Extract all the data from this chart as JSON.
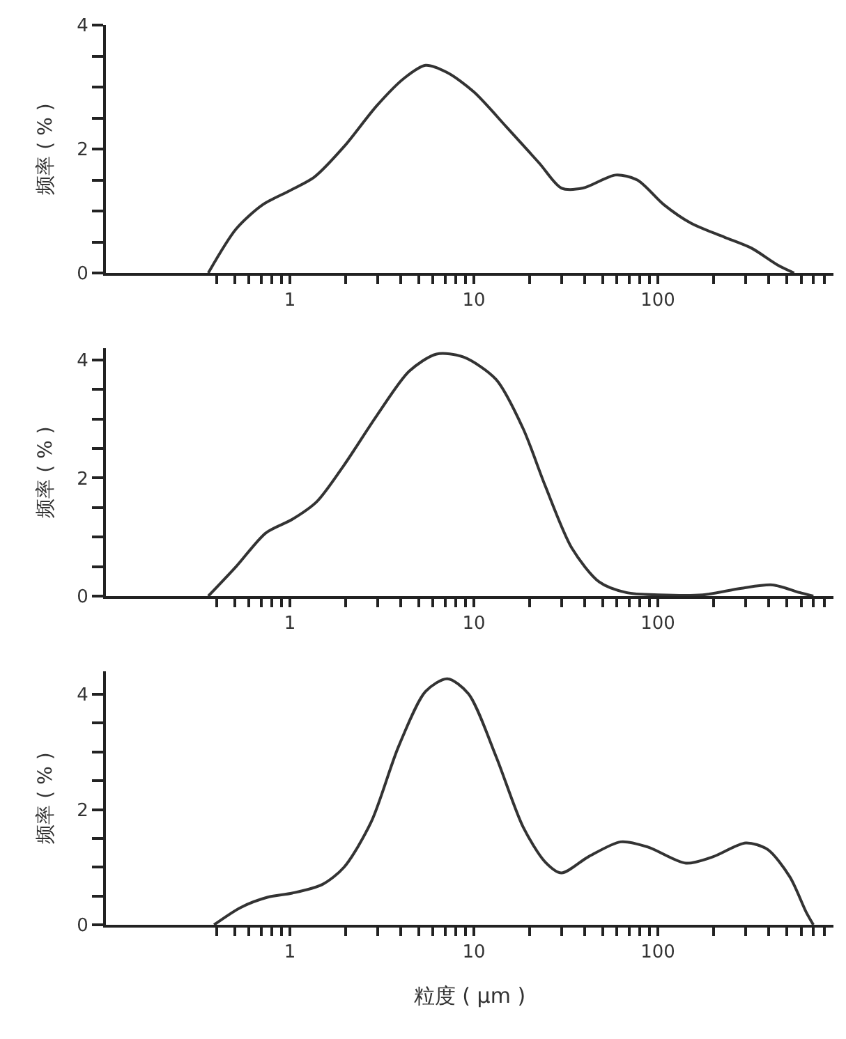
{
  "chart_data": [
    {
      "type": "line",
      "ylabel": "频率 ( % )",
      "log": "x",
      "line_style": "solid",
      "x": [
        0.36,
        0.51,
        0.71,
        1.0,
        1.36,
        1.97,
        2.97,
        4.17,
        5.46,
        7.2,
        10,
        15.1,
        22.7,
        29.9,
        39.2,
        58.9,
        77.3,
        108,
        152,
        229,
        323,
        447,
        550
      ],
      "series": [
        {
          "color": "#333333",
          "values": [
            0,
            0.71,
            1.1,
            1.33,
            1.55,
            2.04,
            2.7,
            3.14,
            3.35,
            3.23,
            2.92,
            2.35,
            1.77,
            1.37,
            1.37,
            1.58,
            1.5,
            1.1,
            0.8,
            0.58,
            0.4,
            0.13,
            0
          ]
        }
      ],
      "xlim": [
        0.1,
        900
      ],
      "xticks": [
        {
          "value": 0.4,
          "label": null
        },
        {
          "value": 0.5,
          "label": null
        },
        {
          "value": 0.6,
          "label": null
        },
        {
          "value": 0.7,
          "label": null
        },
        {
          "value": 0.8,
          "label": null
        },
        {
          "value": 0.9,
          "label": null
        },
        1,
        {
          "value": 2,
          "label": null
        },
        {
          "value": 3,
          "label": null
        },
        {
          "value": 4,
          "label": null
        },
        {
          "value": 5,
          "label": null
        },
        {
          "value": 6,
          "label": null
        },
        {
          "value": 7,
          "label": null
        },
        {
          "value": 8,
          "label": null
        },
        {
          "value": 9,
          "label": null
        },
        10,
        {
          "value": 20,
          "label": null
        },
        {
          "value": 30,
          "label": null
        },
        {
          "value": 40,
          "label": null
        },
        {
          "value": 50,
          "label": null
        },
        {
          "value": 60,
          "label": null
        },
        {
          "value": 70,
          "label": null
        },
        {
          "value": 80,
          "label": null
        },
        {
          "value": 90,
          "label": null
        },
        100,
        {
          "value": 200,
          "label": null
        },
        {
          "value": 300,
          "label": null
        },
        {
          "value": 400,
          "label": null
        },
        {
          "value": 500,
          "label": null
        },
        {
          "value": 600,
          "label": null
        },
        {
          "value": 700,
          "label": null
        },
        {
          "value": 800,
          "label": null
        }
      ],
      "ylim": [
        0,
        4
      ],
      "yticks": [
        0,
        {
          "value": 0.5,
          "label": null
        },
        {
          "value": 1,
          "label": null
        },
        {
          "value": 1.5,
          "label": null
        },
        2,
        {
          "value": 2.5,
          "label": null
        },
        {
          "value": 3,
          "label": null
        },
        {
          "value": 3.5,
          "label": null
        },
        4
      ]
    },
    {
      "type": "line",
      "ylabel": "频率 ( % )",
      "log": "x",
      "line_style": "solid",
      "x": [
        0.36,
        0.51,
        0.74,
        1.03,
        1.4,
        1.97,
        2.97,
        4.45,
        6.26,
        8.77,
        13.2,
        18.5,
        24.4,
        34.1,
        48,
        67.3,
        101,
        175,
        281,
        420,
        590,
        700
      ],
      "series": [
        {
          "color": "#333333",
          "values": [
            0,
            0.5,
            1.07,
            1.3,
            1.6,
            2.22,
            3.06,
            3.81,
            4.1,
            4.05,
            3.67,
            2.84,
            1.87,
            0.81,
            0.24,
            0.06,
            0.02,
            0.02,
            0.13,
            0.19,
            0.06,
            0
          ]
        }
      ],
      "xlim": [
        0.1,
        900
      ],
      "xticks": [
        {
          "value": 0.4,
          "label": null
        },
        {
          "value": 0.5,
          "label": null
        },
        {
          "value": 0.6,
          "label": null
        },
        {
          "value": 0.7,
          "label": null
        },
        {
          "value": 0.8,
          "label": null
        },
        {
          "value": 0.9,
          "label": null
        },
        1,
        {
          "value": 2,
          "label": null
        },
        {
          "value": 3,
          "label": null
        },
        {
          "value": 4,
          "label": null
        },
        {
          "value": 5,
          "label": null
        },
        {
          "value": 6,
          "label": null
        },
        {
          "value": 7,
          "label": null
        },
        {
          "value": 8,
          "label": null
        },
        {
          "value": 9,
          "label": null
        },
        10,
        {
          "value": 20,
          "label": null
        },
        {
          "value": 30,
          "label": null
        },
        {
          "value": 40,
          "label": null
        },
        {
          "value": 50,
          "label": null
        },
        {
          "value": 60,
          "label": null
        },
        {
          "value": 70,
          "label": null
        },
        {
          "value": 80,
          "label": null
        },
        {
          "value": 90,
          "label": null
        },
        100,
        {
          "value": 200,
          "label": null
        },
        {
          "value": 300,
          "label": null
        },
        {
          "value": 400,
          "label": null
        },
        {
          "value": 500,
          "label": null
        },
        {
          "value": 600,
          "label": null
        },
        {
          "value": 700,
          "label": null
        },
        {
          "value": 800,
          "label": null
        }
      ],
      "ylim": [
        0,
        4.2
      ],
      "yticks": [
        0,
        {
          "value": 0.5,
          "label": null
        },
        {
          "value": 1,
          "label": null
        },
        {
          "value": 1.5,
          "label": null
        },
        2,
        {
          "value": 2.5,
          "label": null
        },
        {
          "value": 3,
          "label": null
        },
        {
          "value": 3.5,
          "label": null
        },
        4
      ]
    },
    {
      "type": "line",
      "xlabel": "粒度 ( μm )",
      "ylabel": "频率 ( % )",
      "log": "x",
      "line_style": "solid",
      "x": [
        0.387,
        0.54,
        0.76,
        1.03,
        1.5,
        1.97,
        2.77,
        3.89,
        5.46,
        7.17,
        9.34,
        13.2,
        18.5,
        24.4,
        29.9,
        41.9,
        62.9,
        88.3,
        142,
        199,
        300,
        394,
        522,
        640,
        700
      ],
      "series": [
        {
          "color": "#333333",
          "values": [
            0,
            0.3,
            0.48,
            0.55,
            0.7,
            1.0,
            1.79,
            3.09,
            4.05,
            4.27,
            4.01,
            2.92,
            1.7,
            1.09,
            0.9,
            1.18,
            1.44,
            1.35,
            1.07,
            1.18,
            1.42,
            1.31,
            0.83,
            0.22,
            0
          ]
        }
      ],
      "xlim": [
        0.1,
        900
      ],
      "xticks": [
        {
          "value": 0.4,
          "label": null
        },
        {
          "value": 0.5,
          "label": null
        },
        {
          "value": 0.6,
          "label": null
        },
        {
          "value": 0.7,
          "label": null
        },
        {
          "value": 0.8,
          "label": null
        },
        {
          "value": 0.9,
          "label": null
        },
        1,
        {
          "value": 2,
          "label": null
        },
        {
          "value": 3,
          "label": null
        },
        {
          "value": 4,
          "label": null
        },
        {
          "value": 5,
          "label": null
        },
        {
          "value": 6,
          "label": null
        },
        {
          "value": 7,
          "label": null
        },
        {
          "value": 8,
          "label": null
        },
        {
          "value": 9,
          "label": null
        },
        10,
        {
          "value": 20,
          "label": null
        },
        {
          "value": 30,
          "label": null
        },
        {
          "value": 40,
          "label": null
        },
        {
          "value": 50,
          "label": null
        },
        {
          "value": 60,
          "label": null
        },
        {
          "value": 70,
          "label": null
        },
        {
          "value": 80,
          "label": null
        },
        {
          "value": 90,
          "label": null
        },
        100,
        {
          "value": 200,
          "label": null
        },
        {
          "value": 300,
          "label": null
        },
        {
          "value": 400,
          "label": null
        },
        {
          "value": 500,
          "label": null
        },
        {
          "value": 600,
          "label": null
        },
        {
          "value": 700,
          "label": null
        },
        {
          "value": 800,
          "label": null
        }
      ],
      "ylim": [
        0,
        4.4
      ],
      "yticks": [
        0,
        {
          "value": 0.5,
          "label": null
        },
        {
          "value": 1,
          "label": null
        },
        {
          "value": 1.5,
          "label": null
        },
        2,
        {
          "value": 2.5,
          "label": null
        },
        {
          "value": 3,
          "label": null
        },
        {
          "value": 3.5,
          "label": null
        },
        4
      ]
    }
  ]
}
